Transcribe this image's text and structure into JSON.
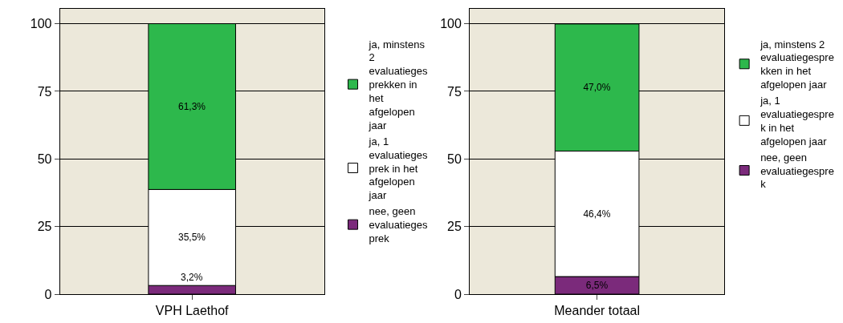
{
  "chart_data": [
    {
      "type": "bar",
      "stacked": true,
      "categories": [
        "VPH Laethof"
      ],
      "ylim": [
        0,
        105.5
      ],
      "yticks": [
        0,
        25,
        50,
        75,
        100
      ],
      "grid": "y",
      "legend": "right",
      "series": [
        {
          "name": "nee, geen evaluatiegesprek",
          "color": "#7b2a7b",
          "values": [
            3.2
          ],
          "value_labels": [
            "3,2%"
          ]
        },
        {
          "name": "ja, 1 evaluatiegesprek in het afgelopen jaar",
          "color": "#ffffff",
          "values": [
            35.5
          ],
          "value_labels": [
            "35,5%"
          ]
        },
        {
          "name": "ja, minstens 2 evaluatiegesprekken in het afgelopen jaar",
          "color": "#2db84c",
          "values": [
            61.3
          ],
          "value_labels": [
            "61,3%"
          ]
        }
      ]
    },
    {
      "type": "bar",
      "stacked": true,
      "categories": [
        "Meander totaal"
      ],
      "ylim": [
        0,
        105.5
      ],
      "yticks": [
        0,
        25,
        50,
        75,
        100
      ],
      "grid": "y",
      "legend": "right",
      "series": [
        {
          "name": "nee, geen evaluatiegesprek",
          "color": "#7b2a7b",
          "values": [
            6.5
          ],
          "value_labels": [
            "6,5%"
          ]
        },
        {
          "name": "ja, 1 evaluatiegesprek in het afgelopen jaar",
          "color": "#ffffff",
          "values": [
            46.4
          ],
          "value_labels": [
            "46,4%"
          ]
        },
        {
          "name": "ja, minstens 2 evaluatiegesprekken in het afgelopen jaar",
          "color": "#2db84c",
          "values": [
            47.0
          ],
          "value_labels": [
            "47,0%"
          ]
        }
      ]
    }
  ]
}
